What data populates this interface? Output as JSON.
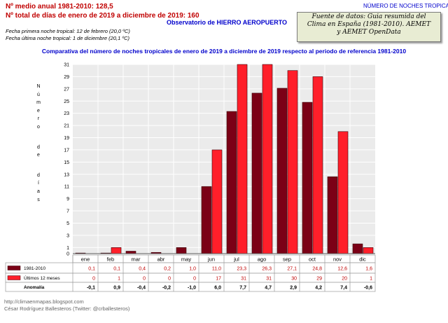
{
  "header": {
    "stat_mean": "Nº medio anual 1981-2010: 128,5",
    "stat_total": "Nº total de días de enero de 2019 a diciembre de 2019: 160",
    "first_night": "Fecha primera noche tropical: 12 de febrero (20,0 ºC)",
    "last_night": "Fecha última noche tropical: 1 de diciembre (20,1 ºC)",
    "observatory": "Observatorio de HIERRO AEROPUERTO",
    "chart_name": "NÚMERO DE NOCHES TROPICALES",
    "source_lines": [
      "Fuente de datos: Guia resumida del",
      "Clima en España (1981-2010). AEMET",
      "y AEMET OpenData"
    ]
  },
  "footer": {
    "blog": "http://climaenmapas.blogspot.com",
    "author": "César Rodríguez Ballesteros (Twitter: @crballesteros)"
  },
  "colors": {
    "ref": "#7b0016",
    "last12": "#ff1f2a",
    "title": "#0000cc",
    "stat": "#c00000",
    "plot_bg": "#ebebeb"
  },
  "chart_data": {
    "type": "bar",
    "title": "Comparativa del número de noches tropicales de enero de 2019 a diciembre de 2019 respecto al periodo de referencia 1981-2010",
    "ylabel": "Número de días",
    "ylim": [
      0,
      31
    ],
    "yticks": [
      0,
      1,
      3,
      5,
      7,
      9,
      11,
      13,
      15,
      17,
      19,
      21,
      23,
      25,
      27,
      29,
      31
    ],
    "grid": true,
    "categories": [
      "ene",
      "feb",
      "mar",
      "abr",
      "may",
      "jun",
      "jul",
      "ago",
      "sep",
      "oct",
      "nov",
      "dic"
    ],
    "series": [
      {
        "name": "1981-2010",
        "values": [
          0.1,
          0.1,
          0.4,
          0.2,
          1.0,
          11.0,
          23.3,
          26.3,
          27.1,
          24.8,
          12.6,
          1.6
        ],
        "labels": [
          "0,1",
          "0,1",
          "0,4",
          "0,2",
          "1,0",
          "11,0",
          "23,3",
          "26,3",
          "27,1",
          "24,8",
          "12,6",
          "1,6"
        ]
      },
      {
        "name": "Últimos 12 meses",
        "values": [
          0,
          1,
          0,
          0,
          0,
          17,
          31,
          31,
          30,
          29,
          20,
          1
        ],
        "labels": [
          "0",
          "1",
          "0",
          "0",
          "0",
          "17",
          "31",
          "31",
          "30",
          "29",
          "20",
          "1"
        ]
      }
    ],
    "anomaly": {
      "name": "Anomalía",
      "labels": [
        "-0,1",
        "0,9",
        "-0,4",
        "-0,2",
        "-1,0",
        "6,0",
        "7,7",
        "4,7",
        "2,9",
        "4,2",
        "7,4",
        "-0,6"
      ]
    }
  }
}
